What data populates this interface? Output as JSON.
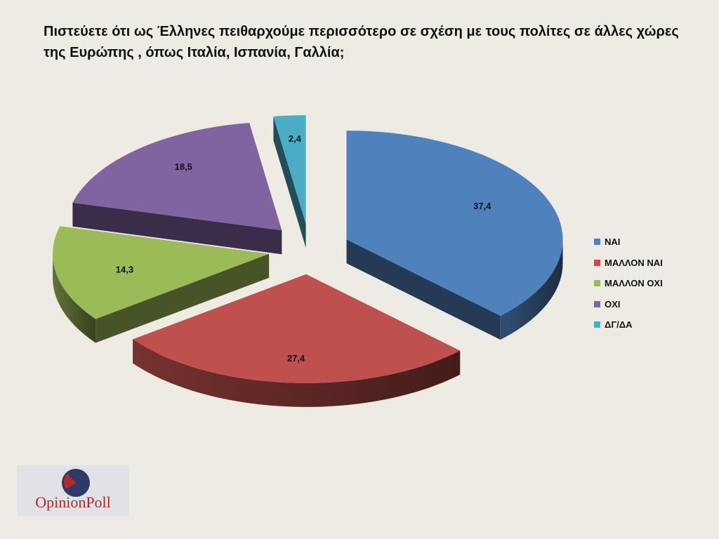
{
  "title": {
    "line1": "Πιστεύετε ότι ως Έλληνες πειθαρχούμε περισσότερο σε σχέση με τους πολίτες σε άλλες χώρες",
    "line2": "της Ευρώπης , όπως Ιταλία, Ισπανία, Γαλλία;"
  },
  "chart_data": {
    "type": "pie",
    "style": "3d-exploded",
    "legend_position": "right",
    "slices": [
      {
        "label": "ΝΑΙ",
        "value": 37.4,
        "value_label": "37,4",
        "color": "#4f81bd"
      },
      {
        "label": "ΜΑΛΛΟΝ ΝΑΙ",
        "value": 27.4,
        "value_label": "27,4",
        "color": "#c0504d"
      },
      {
        "label": "ΜΑΛΛΟΝ ΟΧΙ",
        "value": 14.3,
        "value_label": "14,3",
        "color": "#9bbb59"
      },
      {
        "label": "ΟΧΙ",
        "value": 18.5,
        "value_label": "18,5",
        "color": "#8064a2"
      },
      {
        "label": "ΔΓ/ΔΑ",
        "value": 2.4,
        "value_label": "2,4",
        "color": "#4bacc6"
      }
    ]
  },
  "logo": {
    "text": "OpinionPoll",
    "colors": {
      "red": "#b52a27",
      "navy": "#2f3a66"
    }
  }
}
